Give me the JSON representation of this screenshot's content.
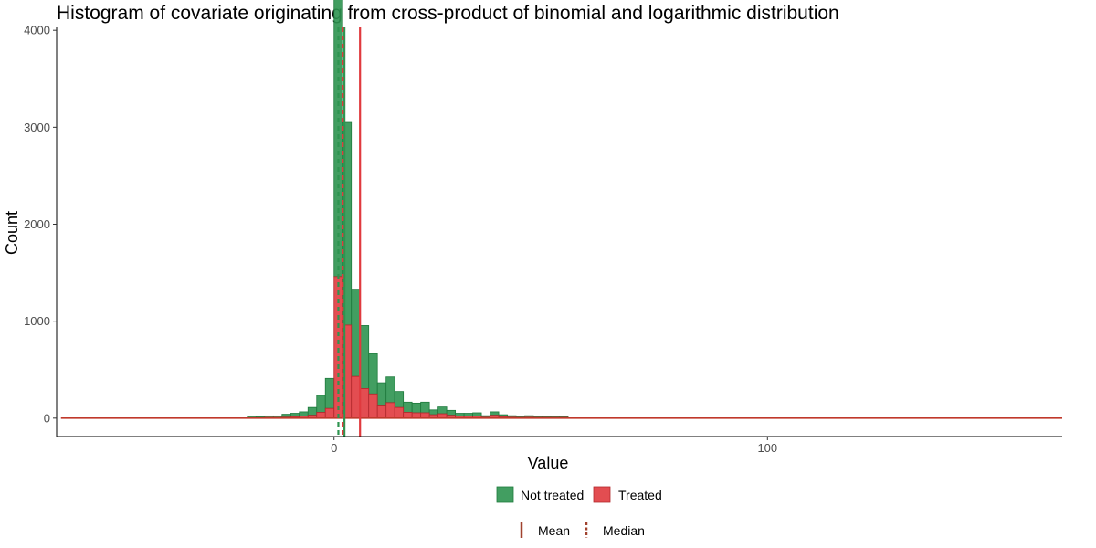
{
  "chart_data": {
    "type": "histogram",
    "title": "Histogram of covariate originating from cross-product of binomial and logarithmic distribution",
    "xlabel": "Value",
    "ylabel": "Count",
    "xlim": [
      -64,
      168
    ],
    "ylim": [
      -190,
      4030
    ],
    "x_ticks": [
      0,
      100
    ],
    "y_ticks": [
      0,
      1000,
      2000,
      3000,
      4000
    ],
    "grid": false,
    "bin_width": 2,
    "stacked": true,
    "series": [
      {
        "name": "Not treated",
        "color": "#2e9450",
        "bins": [
          {
            "x": -20,
            "count": 15
          },
          {
            "x": -18,
            "count": 10
          },
          {
            "x": -16,
            "count": 15
          },
          {
            "x": -14,
            "count": 15
          },
          {
            "x": -12,
            "count": 30
          },
          {
            "x": -10,
            "count": 35
          },
          {
            "x": -8,
            "count": 45
          },
          {
            "x": -6,
            "count": 80
          },
          {
            "x": -4,
            "count": 175
          },
          {
            "x": -2,
            "count": 310
          },
          {
            "x": 0,
            "count": 3860
          },
          {
            "x": 2,
            "count": 2090
          },
          {
            "x": 4,
            "count": 900
          },
          {
            "x": 6,
            "count": 650
          },
          {
            "x": 8,
            "count": 415
          },
          {
            "x": 10,
            "count": 230
          },
          {
            "x": 12,
            "count": 265
          },
          {
            "x": 14,
            "count": 165
          },
          {
            "x": 16,
            "count": 105
          },
          {
            "x": 18,
            "count": 100
          },
          {
            "x": 20,
            "count": 110
          },
          {
            "x": 22,
            "count": 50
          },
          {
            "x": 24,
            "count": 70
          },
          {
            "x": 26,
            "count": 50
          },
          {
            "x": 28,
            "count": 30
          },
          {
            "x": 30,
            "count": 30
          },
          {
            "x": 32,
            "count": 35
          },
          {
            "x": 34,
            "count": 15
          },
          {
            "x": 36,
            "count": 35
          },
          {
            "x": 38,
            "count": 20
          },
          {
            "x": 40,
            "count": 15
          },
          {
            "x": 42,
            "count": 10
          },
          {
            "x": 44,
            "count": 15
          },
          {
            "x": 46,
            "count": 10
          },
          {
            "x": 48,
            "count": 10
          },
          {
            "x": 50,
            "count": 10
          },
          {
            "x": 52,
            "count": 10
          }
        ]
      },
      {
        "name": "Treated",
        "color": "#e03a3e",
        "bins": [
          {
            "x": -20,
            "count": 5
          },
          {
            "x": -18,
            "count": 5
          },
          {
            "x": -16,
            "count": 8
          },
          {
            "x": -14,
            "count": 8
          },
          {
            "x": -12,
            "count": 10
          },
          {
            "x": -10,
            "count": 15
          },
          {
            "x": -8,
            "count": 20
          },
          {
            "x": -6,
            "count": 30
          },
          {
            "x": -4,
            "count": 60
          },
          {
            "x": -2,
            "count": 100
          },
          {
            "x": 0,
            "count": 1460
          },
          {
            "x": 2,
            "count": 960
          },
          {
            "x": 4,
            "count": 430
          },
          {
            "x": 6,
            "count": 305
          },
          {
            "x": 8,
            "count": 250
          },
          {
            "x": 10,
            "count": 135
          },
          {
            "x": 12,
            "count": 160
          },
          {
            "x": 14,
            "count": 110
          },
          {
            "x": 16,
            "count": 60
          },
          {
            "x": 18,
            "count": 55
          },
          {
            "x": 20,
            "count": 55
          },
          {
            "x": 22,
            "count": 35
          },
          {
            "x": 24,
            "count": 45
          },
          {
            "x": 26,
            "count": 30
          },
          {
            "x": 28,
            "count": 20
          },
          {
            "x": 30,
            "count": 20
          },
          {
            "x": 32,
            "count": 20
          },
          {
            "x": 34,
            "count": 10
          },
          {
            "x": 36,
            "count": 30
          },
          {
            "x": 38,
            "count": 15
          },
          {
            "x": 40,
            "count": 10
          },
          {
            "x": 42,
            "count": 8
          },
          {
            "x": 44,
            "count": 10
          },
          {
            "x": 46,
            "count": 8
          },
          {
            "x": 48,
            "count": 8
          },
          {
            "x": 50,
            "count": 8
          },
          {
            "x": 52,
            "count": 8
          }
        ]
      }
    ],
    "baseline": {
      "range": [
        -63,
        168
      ],
      "color": "#c0392b"
    },
    "reference_lines": [
      {
        "series": "Not treated",
        "stat": "Mean",
        "value": 2.4,
        "style": "solid",
        "color": "#2e9450"
      },
      {
        "series": "Not treated",
        "stat": "Median",
        "value": 1.0,
        "style": "dashed",
        "color": "#2e9450"
      },
      {
        "series": "Treated",
        "stat": "Mean",
        "value": 6.0,
        "style": "solid",
        "color": "#e03a3e"
      },
      {
        "series": "Treated",
        "stat": "Median",
        "value": 2.0,
        "style": "dashed",
        "color": "#e03a3e"
      }
    ],
    "legend": {
      "placement": "bottom",
      "fill_items": [
        {
          "label": "Not treated",
          "color": "#2e9450"
        },
        {
          "label": "Treated",
          "color": "#e03a3e"
        }
      ],
      "line_items": [
        {
          "label": "Mean",
          "style": "solid",
          "color": "#a0422e"
        },
        {
          "label": "Median",
          "style": "dashed",
          "color": "#a0422e"
        }
      ]
    }
  }
}
